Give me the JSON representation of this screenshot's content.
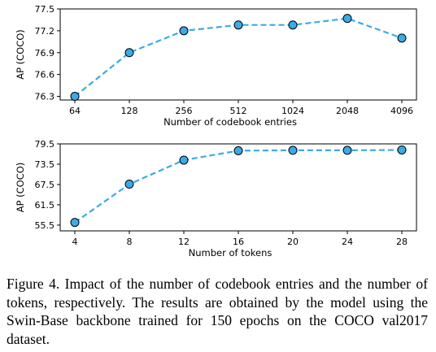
{
  "chart_data": [
    {
      "type": "line",
      "xlabel": "Number of codebook entries",
      "ylabel": "AP (COCO)",
      "categories": [
        "64",
        "128",
        "256",
        "512",
        "1024",
        "2048",
        "4096"
      ],
      "y_ticks": [
        "76.3",
        "76.6",
        "76.9",
        "77.2",
        "77.5"
      ],
      "ylim": [
        76.25,
        77.5
      ],
      "series": [
        {
          "values": [
            76.3,
            76.9,
            77.2,
            77.28,
            77.28,
            77.37,
            77.1
          ]
        }
      ],
      "line_color": "#3AABE8",
      "marker_color": "#3AABE8",
      "line_style": "dashed",
      "grid": false
    },
    {
      "type": "line",
      "xlabel": "Number of tokens",
      "ylabel": "AP (COCO)",
      "categories": [
        "4",
        "8",
        "12",
        "16",
        "20",
        "24",
        "28"
      ],
      "y_ticks": [
        "55.5",
        "61.5",
        "67.5",
        "73.5",
        "79.5"
      ],
      "ylim": [
        53.8,
        79.5
      ],
      "series": [
        {
          "values": [
            56.3,
            67.6,
            74.7,
            77.5,
            77.6,
            77.6,
            77.7
          ]
        }
      ],
      "line_color": "#3AABE8",
      "marker_color": "#3AABE8",
      "line_style": "dashed",
      "grid": false
    }
  ],
  "caption": "Figure 4.  Impact of the number of codebook entries and the number of tokens, respectively. The results are obtained by the model using the Swin-Base backbone trained for 150 epochs on the COCO val2017 dataset."
}
